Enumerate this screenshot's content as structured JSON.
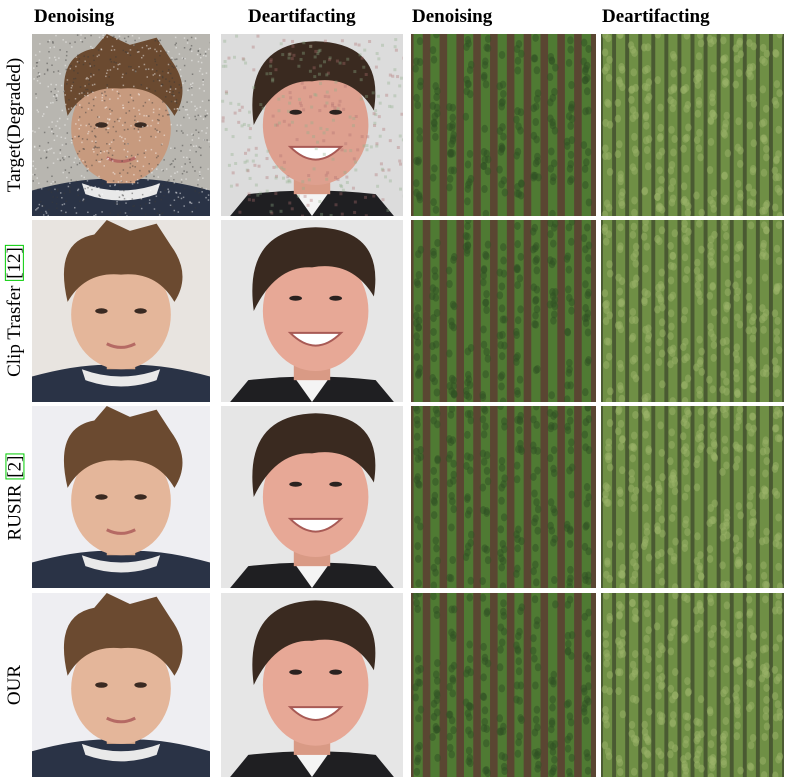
{
  "columns": [
    {
      "label": "Denoising"
    },
    {
      "label": "Deartifacting"
    },
    {
      "label": "Denoising"
    },
    {
      "label": "Deartifacting"
    }
  ],
  "rows": [
    {
      "label": "Target(Degraded)",
      "cite": ""
    },
    {
      "label": "Clip Trasfer ",
      "cite": "[12]"
    },
    {
      "label": "RUSIR ",
      "cite": "[2]"
    },
    {
      "label": "OUR",
      "cite": ""
    }
  ],
  "colors": {
    "citation_border": "#00cc00",
    "field_base": "#3a4f2a",
    "soil": "#5a4632",
    "crop": "#4f7a33"
  }
}
